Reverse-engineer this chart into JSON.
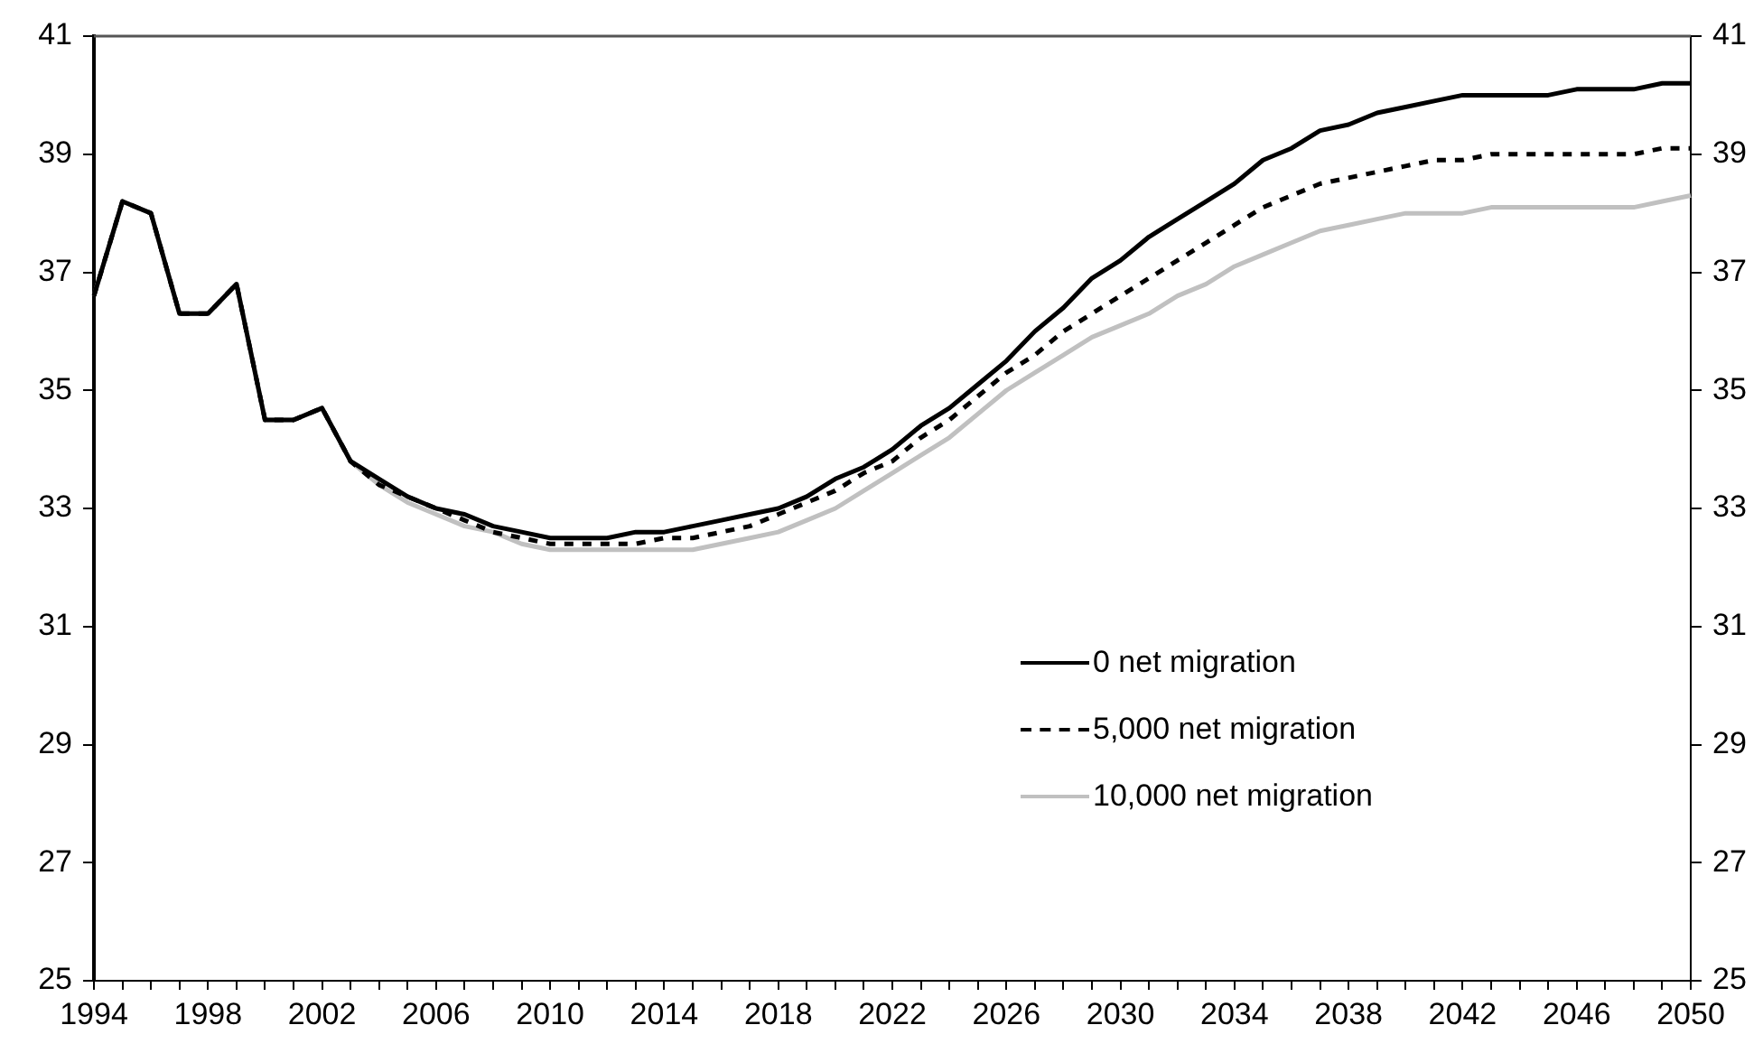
{
  "chart_data": {
    "type": "line",
    "categories": [
      "1994",
      null,
      null,
      null,
      "1998",
      null,
      null,
      null,
      "2002",
      null,
      null,
      null,
      "2006",
      null,
      null,
      null,
      "2010",
      null,
      null,
      null,
      "2014",
      null,
      null,
      null,
      "2018",
      null,
      null,
      null,
      "2022",
      null,
      null,
      null,
      "2026",
      null,
      null,
      null,
      "2030",
      null,
      null,
      null,
      "2034",
      null,
      null,
      null,
      "2038",
      null,
      null,
      null,
      "2042",
      null,
      null,
      null,
      "2046",
      null,
      null,
      null,
      "2050"
    ],
    "series": [
      {
        "name": "0 net migration",
        "color": "#000000",
        "line_style": "solid",
        "values": [
          36.6,
          38.2,
          38.0,
          36.3,
          36.3,
          36.8,
          34.5,
          34.5,
          34.7,
          33.8,
          33.5,
          33.2,
          33.0,
          32.9,
          32.7,
          32.6,
          32.5,
          32.5,
          32.5,
          32.6,
          32.6,
          32.7,
          32.8,
          32.9,
          33.0,
          33.2,
          33.5,
          33.7,
          34.0,
          34.4,
          34.7,
          35.1,
          35.5,
          36.0,
          36.4,
          36.9,
          37.2,
          37.6,
          37.9,
          38.2,
          38.5,
          38.9,
          39.1,
          39.4,
          39.5,
          39.7,
          39.8,
          39.9,
          40.0,
          40.0,
          40.0,
          40.0,
          40.1,
          40.1,
          40.1,
          40.2,
          40.2
        ]
      },
      {
        "name": "5,000 net migration",
        "color": "#000000",
        "line_style": "dashed",
        "values": [
          36.6,
          38.2,
          38.0,
          36.3,
          36.3,
          36.8,
          34.5,
          34.5,
          34.7,
          33.8,
          33.4,
          33.2,
          33.0,
          32.8,
          32.6,
          32.5,
          32.4,
          32.4,
          32.4,
          32.4,
          32.5,
          32.5,
          32.6,
          32.7,
          32.9,
          33.1,
          33.3,
          33.6,
          33.8,
          34.2,
          34.5,
          34.9,
          35.3,
          35.6,
          36.0,
          36.3,
          36.6,
          36.9,
          37.2,
          37.5,
          37.8,
          38.1,
          38.3,
          38.5,
          38.6,
          38.7,
          38.8,
          38.9,
          38.9,
          39.0,
          39.0,
          39.0,
          39.0,
          39.0,
          39.0,
          39.1,
          39.1
        ]
      },
      {
        "name": "10,000 net migration",
        "color": "#c0c0c0",
        "line_style": "solid",
        "values": [
          36.6,
          38.2,
          38.0,
          36.3,
          36.3,
          36.8,
          34.5,
          34.5,
          34.7,
          33.8,
          33.4,
          33.1,
          32.9,
          32.7,
          32.6,
          32.4,
          32.3,
          32.3,
          32.3,
          32.3,
          32.3,
          32.3,
          32.4,
          32.5,
          32.6,
          32.8,
          33.0,
          33.3,
          33.6,
          33.9,
          34.2,
          34.6,
          35.0,
          35.3,
          35.6,
          35.9,
          36.1,
          36.3,
          36.6,
          36.8,
          37.1,
          37.3,
          37.5,
          37.7,
          37.8,
          37.9,
          38.0,
          38.0,
          38.0,
          38.1,
          38.1,
          38.1,
          38.1,
          38.1,
          38.1,
          38.2,
          38.3
        ]
      }
    ],
    "ylim": [
      25,
      41
    ],
    "yticks": [
      25,
      27,
      29,
      31,
      33,
      35,
      37,
      39,
      41
    ],
    "y2lim": [
      25,
      41
    ],
    "y2ticks": [
      25,
      27,
      29,
      31,
      33,
      35,
      37,
      39,
      41
    ],
    "grid": false,
    "legend": "bottom right",
    "marker": "none"
  }
}
